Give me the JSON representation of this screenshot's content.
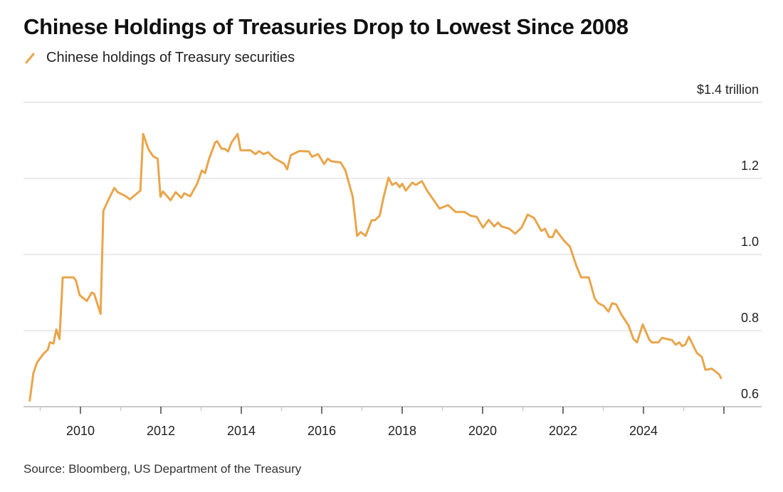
{
  "chart_data": {
    "type": "line",
    "title": "Chinese Holdings of Treasuries Drop to Lowest Since 2008",
    "legend": [
      "Chinese holdings of Treasury securities"
    ],
    "legend_placement": "top-left",
    "ylabel": "$1.4 trillion",
    "ylim": [
      0.6,
      1.4
    ],
    "xlim": [
      2008.6,
      2026.4
    ],
    "yticks": [
      "0.6",
      "0.8",
      "1.0",
      "1.2"
    ],
    "yticks_values": [
      0.6,
      0.8,
      1.0,
      1.2,
      1.4
    ],
    "xticks": [
      "2010",
      "2012",
      "2014",
      "2016",
      "2018",
      "2020",
      "2022",
      "2024"
    ],
    "grid": true,
    "color": "#e9a54b",
    "series": [
      {
        "name": "Chinese holdings of Treasury securities",
        "x": [
          2008.74,
          2008.83,
          2008.92,
          2009.07,
          2009.19,
          2009.24,
          2009.33,
          2009.4,
          2009.48,
          2009.56,
          2009.83,
          2009.89,
          2009.98,
          2010.16,
          2010.28,
          2010.34,
          2010.5,
          2010.57,
          2010.66,
          2010.84,
          2010.93,
          2011.13,
          2011.23,
          2011.49,
          2011.56,
          2011.69,
          2011.81,
          2011.92,
          2011.99,
          2012.05,
          2012.24,
          2012.37,
          2012.51,
          2012.58,
          2012.73,
          2012.9,
          2013.02,
          2013.1,
          2013.2,
          2013.35,
          2013.4,
          2013.51,
          2013.59,
          2013.67,
          2013.76,
          2013.91,
          2013.98,
          2014.23,
          2014.35,
          2014.44,
          2014.55,
          2014.67,
          2014.82,
          2015.06,
          2015.14,
          2015.23,
          2015.44,
          2015.68,
          2015.76,
          2015.91,
          2016.06,
          2016.15,
          2016.24,
          2016.47,
          2016.59,
          2016.77,
          2016.88,
          2016.97,
          2017.09,
          2017.24,
          2017.32,
          2017.44,
          2017.54,
          2017.66,
          2017.75,
          2017.85,
          2017.94,
          2018.0,
          2018.09,
          2018.25,
          2018.34,
          2018.49,
          2018.62,
          2018.93,
          2019.14,
          2019.33,
          2019.55,
          2019.7,
          2019.85,
          2020.01,
          2020.15,
          2020.29,
          2020.38,
          2020.47,
          2020.66,
          2020.81,
          2020.97,
          2021.12,
          2021.28,
          2021.46,
          2021.55,
          2021.65,
          2021.74,
          2021.82,
          2022.02,
          2022.17,
          2022.33,
          2022.45,
          2022.64,
          2022.79,
          2022.88,
          2023.01,
          2023.13,
          2023.22,
          2023.32,
          2023.44,
          2023.63,
          2023.75,
          2023.84,
          2023.98,
          2024.15,
          2024.21,
          2024.37,
          2024.46,
          2024.71,
          2024.8,
          2024.89,
          2024.96,
          2025.04,
          2025.13,
          2025.33,
          2025.45,
          2025.54,
          2025.7,
          2025.88,
          2025.93
        ],
        "values": [
          0.616,
          0.688,
          0.716,
          0.738,
          0.75,
          0.769,
          0.766,
          0.803,
          0.778,
          0.94,
          0.94,
          0.931,
          0.893,
          0.878,
          0.9,
          0.897,
          0.844,
          1.115,
          1.136,
          1.175,
          1.164,
          1.153,
          1.145,
          1.168,
          1.317,
          1.277,
          1.258,
          1.252,
          1.152,
          1.166,
          1.143,
          1.164,
          1.149,
          1.161,
          1.153,
          1.186,
          1.221,
          1.214,
          1.252,
          1.295,
          1.298,
          1.278,
          1.278,
          1.271,
          1.295,
          1.317,
          1.274,
          1.274,
          1.264,
          1.272,
          1.264,
          1.269,
          1.253,
          1.239,
          1.224,
          1.261,
          1.272,
          1.271,
          1.257,
          1.264,
          1.238,
          1.252,
          1.245,
          1.242,
          1.221,
          1.152,
          1.049,
          1.059,
          1.049,
          1.09,
          1.09,
          1.102,
          1.152,
          1.202,
          1.183,
          1.189,
          1.177,
          1.186,
          1.168,
          1.189,
          1.183,
          1.193,
          1.168,
          1.121,
          1.13,
          1.112,
          1.112,
          1.102,
          1.099,
          1.071,
          1.091,
          1.074,
          1.084,
          1.074,
          1.068,
          1.055,
          1.071,
          1.105,
          1.096,
          1.062,
          1.068,
          1.046,
          1.046,
          1.065,
          1.037,
          1.021,
          0.971,
          0.94,
          0.94,
          0.884,
          0.872,
          0.865,
          0.85,
          0.872,
          0.869,
          0.844,
          0.813,
          0.778,
          0.769,
          0.816,
          0.775,
          0.769,
          0.769,
          0.781,
          0.775,
          0.763,
          0.769,
          0.759,
          0.763,
          0.784,
          0.741,
          0.731,
          0.697,
          0.7,
          0.685,
          0.675
        ]
      }
    ],
    "source": "Source: Bloomberg, US Department of the Treasury"
  }
}
